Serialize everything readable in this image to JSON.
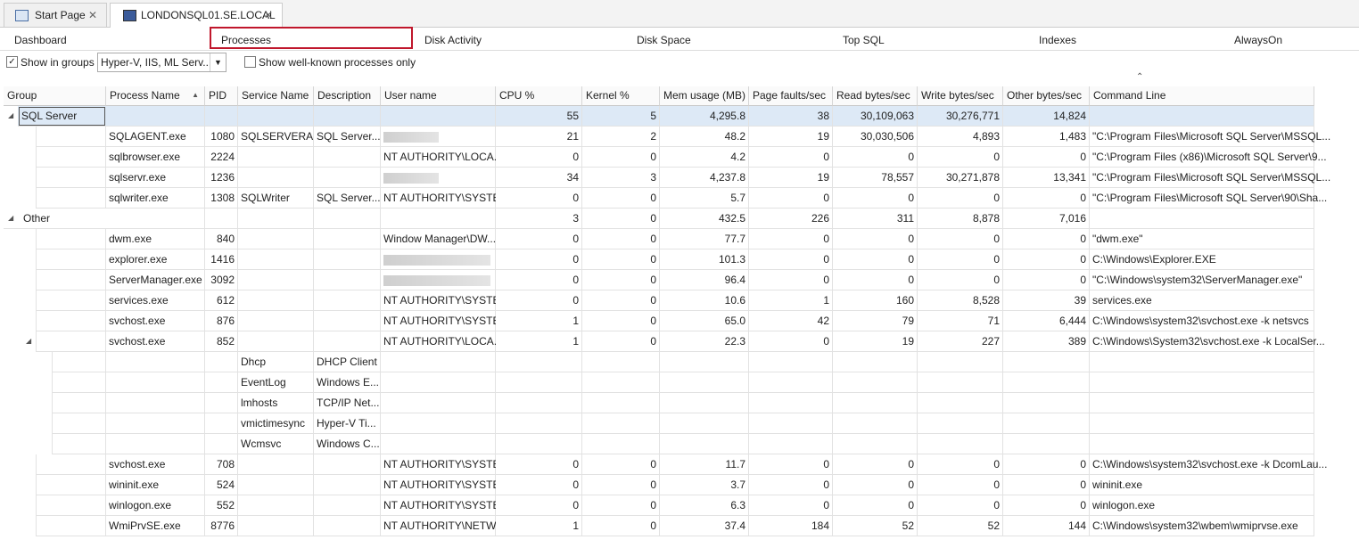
{
  "tabs": [
    "Start Page",
    "LONDONSQL01.SE.LOCAL"
  ],
  "nav": [
    "Dashboard",
    "Processes",
    "Disk Activity",
    "Disk Space",
    "Top SQL",
    "Indexes",
    "AlwaysOn"
  ],
  "toolbar": {
    "show_in_groups": "Show in groups",
    "groups_dropdown": "Hyper-V, IIS, ML Serv...",
    "well_known": "Show well-known processes only"
  },
  "table": {
    "columns": [
      "Group",
      "Process Name",
      "PID",
      "Service Name",
      "Description",
      "User name",
      "CPU %",
      "Kernel %",
      "Mem usage (MB)",
      "Page faults/sec",
      "Read bytes/sec",
      "Write bytes/sec",
      "Other bytes/sec",
      "Command Line"
    ],
    "rows": [
      {
        "kind": "group",
        "cells": [
          "SQL Server",
          null,
          null,
          null,
          null,
          null,
          "55",
          "5",
          "4,295.8",
          "38",
          "30,109,063",
          "30,276,771",
          "14,824",
          null
        ]
      },
      {
        "kind": "process",
        "redacted": true,
        "cells": [
          null,
          "SQLAGENT.exe",
          "1080",
          "SQLSERVERA...",
          "SQL Server...",
          null,
          "21",
          "2",
          "48.2",
          "19",
          "30,030,506",
          "4,893",
          "1,483",
          "\"C:\\Program Files\\Microsoft SQL Server\\MSSQL..."
        ]
      },
      {
        "kind": "process",
        "cells": [
          null,
          "sqlbrowser.exe",
          "2224",
          null,
          null,
          "NT AUTHORITY\\LOCA...",
          "0",
          "0",
          "4.2",
          "0",
          "0",
          "0",
          "0",
          "\"C:\\Program Files (x86)\\Microsoft SQL Server\\9..."
        ]
      },
      {
        "kind": "process",
        "redacted": true,
        "cells": [
          null,
          "sqlservr.exe",
          "1236",
          null,
          null,
          null,
          "34",
          "3",
          "4,237.8",
          "19",
          "78,557",
          "30,271,878",
          "13,341",
          "\"C:\\Program Files\\Microsoft SQL Server\\MSSQL..."
        ]
      },
      {
        "kind": "process",
        "cells": [
          null,
          "sqlwriter.exe",
          "1308",
          "SQLWriter",
          "SQL Server...",
          "NT AUTHORITY\\SYSTEM",
          "0",
          "0",
          "5.7",
          "0",
          "0",
          "0",
          "0",
          "\"C:\\Program Files\\Microsoft SQL Server\\90\\Sha..."
        ]
      },
      {
        "kind": "group",
        "cells": [
          "Other",
          null,
          null,
          null,
          null,
          null,
          "3",
          "0",
          "432.5",
          "226",
          "311",
          "8,878",
          "7,016",
          null
        ]
      },
      {
        "kind": "process",
        "cells": [
          null,
          "dwm.exe",
          "840",
          null,
          null,
          "Window Manager\\DW...",
          "0",
          "0",
          "77.7",
          "0",
          "0",
          "0",
          "0",
          "\"dwm.exe\""
        ]
      },
      {
        "kind": "process",
        "redacted": true,
        "cells": [
          null,
          "explorer.exe",
          "1416",
          null,
          null,
          null,
          "0",
          "0",
          "101.3",
          "0",
          "0",
          "0",
          "0",
          "C:\\Windows\\Explorer.EXE"
        ]
      },
      {
        "kind": "process",
        "redacted": true,
        "cells": [
          null,
          "ServerManager.exe",
          "3092",
          null,
          null,
          null,
          "0",
          "0",
          "96.4",
          "0",
          "0",
          "0",
          "0",
          "\"C:\\Windows\\system32\\ServerManager.exe\""
        ]
      },
      {
        "kind": "process",
        "cells": [
          null,
          "services.exe",
          "612",
          null,
          null,
          "NT AUTHORITY\\SYSTEM",
          "0",
          "0",
          "10.6",
          "1",
          "160",
          "8,528",
          "39",
          "services.exe"
        ]
      },
      {
        "kind": "process",
        "cells": [
          null,
          "svchost.exe",
          "876",
          null,
          null,
          "NT AUTHORITY\\SYSTEM",
          "1",
          "0",
          "65.0",
          "42",
          "79",
          "71",
          "6,444",
          "C:\\Windows\\system32\\svchost.exe -k netsvcs"
        ]
      },
      {
        "kind": "process",
        "expanded": true,
        "cells": [
          null,
          "svchost.exe",
          "852",
          null,
          null,
          "NT AUTHORITY\\LOCA...",
          "1",
          "0",
          "22.3",
          "0",
          "19",
          "227",
          "389",
          "C:\\Windows\\System32\\svchost.exe -k LocalSer..."
        ]
      },
      {
        "kind": "service",
        "cells": [
          null,
          null,
          null,
          "Dhcp",
          "DHCP Client",
          null,
          null,
          null,
          null,
          null,
          null,
          null,
          null,
          null
        ]
      },
      {
        "kind": "service",
        "cells": [
          null,
          null,
          null,
          "EventLog",
          "Windows E...",
          null,
          null,
          null,
          null,
          null,
          null,
          null,
          null,
          null
        ]
      },
      {
        "kind": "service",
        "cells": [
          null,
          null,
          null,
          "lmhosts",
          "TCP/IP Net...",
          null,
          null,
          null,
          null,
          null,
          null,
          null,
          null,
          null
        ]
      },
      {
        "kind": "service",
        "cells": [
          null,
          null,
          null,
          "vmictimesync",
          "Hyper-V Ti...",
          null,
          null,
          null,
          null,
          null,
          null,
          null,
          null,
          null
        ]
      },
      {
        "kind": "service",
        "cells": [
          null,
          null,
          null,
          "Wcmsvc",
          "Windows C...",
          null,
          null,
          null,
          null,
          null,
          null,
          null,
          null,
          null
        ]
      },
      {
        "kind": "process",
        "cells": [
          null,
          "svchost.exe",
          "708",
          null,
          null,
          "NT AUTHORITY\\SYSTEM",
          "0",
          "0",
          "11.7",
          "0",
          "0",
          "0",
          "0",
          "C:\\Windows\\system32\\svchost.exe -k DcomLau..."
        ]
      },
      {
        "kind": "process",
        "cells": [
          null,
          "wininit.exe",
          "524",
          null,
          null,
          "NT AUTHORITY\\SYSTEM",
          "0",
          "0",
          "3.7",
          "0",
          "0",
          "0",
          "0",
          "wininit.exe"
        ]
      },
      {
        "kind": "process",
        "cells": [
          null,
          "winlogon.exe",
          "552",
          null,
          null,
          "NT AUTHORITY\\SYSTEM",
          "0",
          "0",
          "6.3",
          "0",
          "0",
          "0",
          "0",
          "winlogon.exe"
        ]
      },
      {
        "kind": "process",
        "cells": [
          null,
          "WmiPrvSE.exe",
          "8776",
          null,
          null,
          "NT AUTHORITY\\NETW...",
          "1",
          "0",
          "37.4",
          "184",
          "52",
          "52",
          "144",
          "C:\\Windows\\system32\\wbem\\wmiprvse.exe"
        ]
      }
    ]
  }
}
